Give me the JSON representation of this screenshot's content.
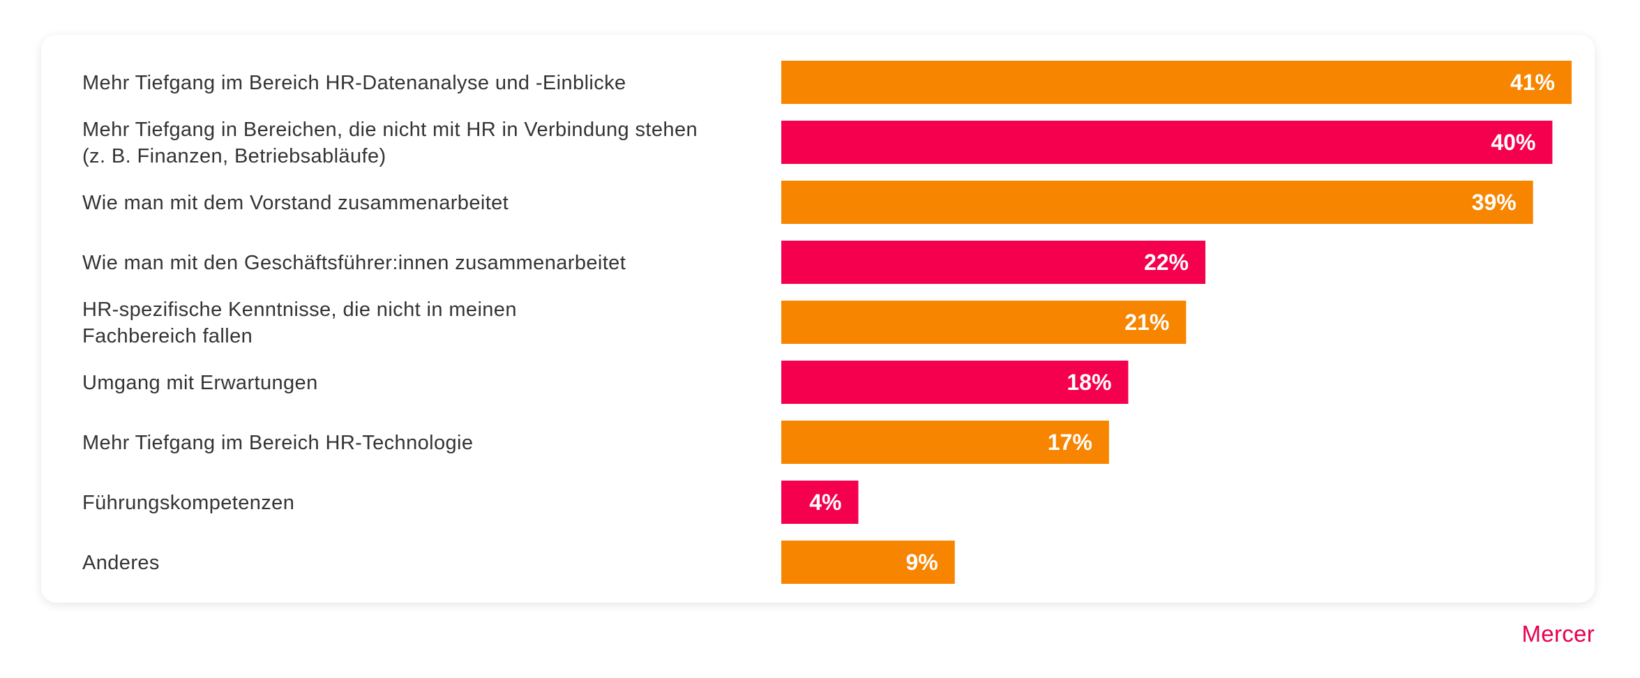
{
  "chart_data": {
    "type": "bar",
    "orientation": "horizontal",
    "categories": [
      [
        "Mehr Tiefgang im Bereich HR-Datenanalyse und -Einblicke"
      ],
      [
        "Mehr Tiefgang in Bereichen, die nicht mit HR in Verbindung stehen",
        "(z. B. Finanzen, Betriebsabläufe)"
      ],
      [
        "Wie man mit dem Vorstand zusammenarbeitet"
      ],
      [
        "Wie man mit den Geschäftsführer:innen zusammenarbeitet"
      ],
      [
        "HR-spezifische Kenntnisse, die nicht in meinen",
        "Fachbereich fallen"
      ],
      [
        "Umgang mit Erwartungen"
      ],
      [
        "Mehr Tiefgang im Bereich HR-Technologie"
      ],
      [
        "Führungskompetenzen"
      ],
      [
        "Anderes"
      ]
    ],
    "values": [
      41,
      40,
      39,
      22,
      21,
      18,
      17,
      4,
      9
    ],
    "value_labels": [
      "41%",
      "40%",
      "39%",
      "22%",
      "21%",
      "18%",
      "17%",
      "4%",
      "9%"
    ],
    "bar_colors": [
      "#f78500",
      "#f5004f",
      "#f78500",
      "#f5004f",
      "#f78500",
      "#f5004f",
      "#f78500",
      "#f5004f",
      "#f78500"
    ],
    "xlim": [
      0,
      41
    ],
    "grid": false,
    "title": "",
    "xlabel": "",
    "ylabel": ""
  },
  "branding": {
    "company": "Mercer",
    "color": "#e8004c"
  }
}
